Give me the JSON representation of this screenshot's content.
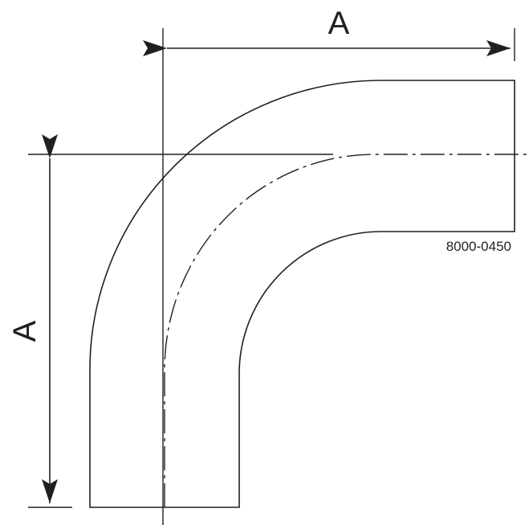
{
  "drawing": {
    "dimension_top_label": "A",
    "dimension_left_label": "A",
    "part_number": "8000-0450",
    "line_color": "#231f20"
  }
}
